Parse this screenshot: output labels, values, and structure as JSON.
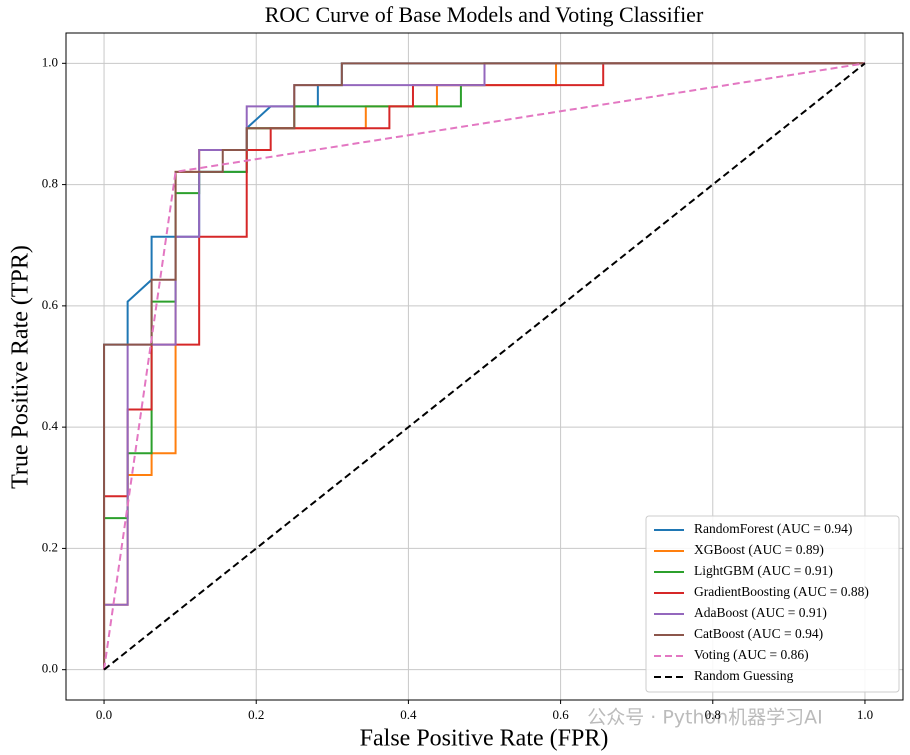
{
  "chart_data": {
    "type": "line",
    "title": "ROC Curve of Base Models and Voting Classifier",
    "x_label": "False Positive Rate (FPR)",
    "y_label": "True Positive Rate (TPR)",
    "xlim": [
      -0.05,
      1.05
    ],
    "ylim": [
      -0.05,
      1.05
    ],
    "xticks": [
      {
        "value": 0,
        "label": "0.0"
      },
      0.2,
      0.4,
      0.6,
      0.8,
      {
        "value": 1,
        "label": "1.0"
      }
    ],
    "yticks": [
      {
        "value": 0,
        "label": "0.0"
      },
      0.2,
      0.4,
      0.6,
      0.8,
      {
        "value": 1,
        "label": "1.0"
      }
    ],
    "grid": true,
    "legend": "lower right",
    "watermark": "公众号 · Python机器学习AI",
    "series": [
      {
        "name": "RandomForest (AUC = 0.94)",
        "color": "#1f77b4",
        "linestyle": "solid",
        "x": [
          0,
          0,
          0.031,
          0.031,
          0.0625,
          0.0625,
          0.125,
          0.125,
          0.1875,
          0.1875,
          0.219,
          0.281,
          0.281,
          0.3125,
          0.3125,
          1
        ],
        "values": [
          0,
          0.536,
          0.536,
          0.607,
          0.643,
          0.714,
          0.714,
          0.821,
          0.821,
          0.893,
          0.929,
          0.929,
          0.964,
          0.964,
          1,
          1
        ]
      },
      {
        "name": "XGBoost (AUC = 0.89)",
        "color": "#ff7f0e",
        "linestyle": "solid",
        "x": [
          0,
          0,
          0.031,
          0.031,
          0.0625,
          0.0625,
          0.094,
          0.094,
          0.125,
          0.125,
          0.1875,
          0.1875,
          0.344,
          0.344,
          0.4375,
          0.4375,
          0.594,
          0.594,
          1
        ],
        "values": [
          0,
          0.107,
          0.107,
          0.321,
          0.321,
          0.357,
          0.357,
          0.821,
          0.821,
          0.857,
          0.857,
          0.893,
          0.893,
          0.929,
          0.929,
          0.964,
          0.964,
          1,
          1
        ]
      },
      {
        "name": "LightGBM (AUC = 0.91)",
        "color": "#2ca02c",
        "linestyle": "solid",
        "x": [
          0,
          0,
          0.031,
          0.031,
          0.0625,
          0.0625,
          0.094,
          0.094,
          0.125,
          0.125,
          0.1875,
          0.1875,
          0.25,
          0.25,
          0.469,
          0.469,
          0.5,
          0.5,
          1
        ],
        "values": [
          0,
          0.25,
          0.25,
          0.357,
          0.357,
          0.607,
          0.607,
          0.786,
          0.786,
          0.821,
          0.821,
          0.893,
          0.893,
          0.929,
          0.929,
          0.964,
          0.964,
          1,
          1
        ]
      },
      {
        "name": "GradientBoosting (AUC = 0.88)",
        "color": "#d62728",
        "linestyle": "solid",
        "x": [
          0,
          0,
          0.031,
          0.031,
          0.0625,
          0.0625,
          0.125,
          0.125,
          0.1875,
          0.1875,
          0.219,
          0.219,
          0.375,
          0.375,
          0.406,
          0.406,
          0.656,
          0.656,
          1
        ],
        "values": [
          0,
          0.286,
          0.286,
          0.429,
          0.429,
          0.536,
          0.536,
          0.714,
          0.714,
          0.857,
          0.857,
          0.893,
          0.893,
          0.929,
          0.929,
          0.964,
          0.964,
          1,
          1
        ]
      },
      {
        "name": "AdaBoost (AUC = 0.91)",
        "color": "#9467bd",
        "linestyle": "solid",
        "x": [
          0,
          0,
          0.031,
          0.031,
          0.094,
          0.094,
          0.125,
          0.125,
          0.1875,
          0.1875,
          0.25,
          0.25,
          0.5,
          0.5,
          1
        ],
        "values": [
          0,
          0.107,
          0.107,
          0.536,
          0.536,
          0.714,
          0.714,
          0.857,
          0.857,
          0.929,
          0.929,
          0.964,
          0.964,
          1,
          1
        ]
      },
      {
        "name": "CatBoost (AUC = 0.94)",
        "color": "#8c564b",
        "linestyle": "solid",
        "x": [
          0,
          0,
          0.0625,
          0.0625,
          0.094,
          0.094,
          0.156,
          0.156,
          0.1875,
          0.1875,
          0.25,
          0.25,
          0.3125,
          0.3125,
          1
        ],
        "values": [
          0,
          0.536,
          0.536,
          0.643,
          0.643,
          0.821,
          0.821,
          0.857,
          0.857,
          0.893,
          0.893,
          0.964,
          0.964,
          1,
          1
        ]
      },
      {
        "name": "Voting (AUC = 0.86)",
        "color": "#e377c2",
        "linestyle": "dashed",
        "x": [
          0,
          0.094,
          1
        ],
        "values": [
          0,
          0.821,
          1
        ]
      },
      {
        "name": "Random Guessing",
        "color": "#000000",
        "linestyle": "dashed",
        "x": [
          0,
          1
        ],
        "values": [
          0,
          1
        ]
      }
    ]
  }
}
